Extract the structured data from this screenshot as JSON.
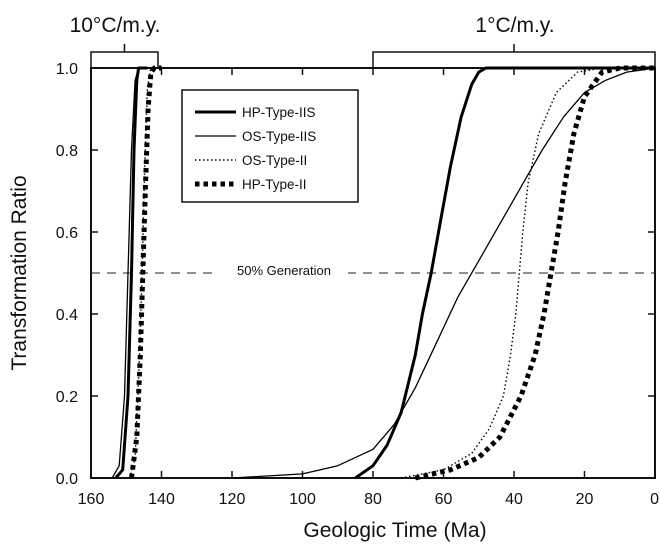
{
  "chart_data": {
    "type": "line",
    "title": "",
    "xlabel": "Geologic Time (Ma)",
    "ylabel": "Transformation Ratio",
    "xlim": [
      160,
      0
    ],
    "ylim": [
      0,
      1.0
    ],
    "x_reversed": true,
    "x_ticks": [
      160,
      140,
      120,
      100,
      80,
      60,
      40,
      20,
      0
    ],
    "x_tick_labels": [
      "160",
      "140",
      "120",
      "100",
      "80",
      "60",
      "40",
      "20",
      "0"
    ],
    "y_ticks": [
      0,
      0.2,
      0.4,
      0.6,
      0.8,
      1.0
    ],
    "y_tick_labels": [
      "0.0",
      "0.2",
      "0.4",
      "0.6",
      "0.8",
      "1.0"
    ],
    "grid": false,
    "legend_position": "top-center",
    "heating_rates": [
      {
        "label": "10°C/m.y.",
        "x_range": [
          160,
          141
        ]
      },
      {
        "label": "1°C/m.y.",
        "x_range": [
          80,
          0
        ]
      }
    ],
    "annotations": [
      {
        "text": "50% Generation",
        "y": 0.5,
        "style": "dashed"
      }
    ],
    "series": [
      {
        "name": "HP-Type-IIS",
        "style": "solid-thick",
        "points_10C": [
          [
            153,
            0.0
          ],
          [
            151,
            0.02
          ],
          [
            149.5,
            0.2
          ],
          [
            148.5,
            0.5
          ],
          [
            147.8,
            0.8
          ],
          [
            147,
            0.97
          ],
          [
            146.5,
            1.0
          ],
          [
            144,
            1.0
          ]
        ],
        "points_1C": [
          [
            85,
            0.0
          ],
          [
            80,
            0.03
          ],
          [
            76,
            0.08
          ],
          [
            72,
            0.16
          ],
          [
            68,
            0.3
          ],
          [
            66,
            0.4
          ],
          [
            63.5,
            0.5
          ],
          [
            61,
            0.62
          ],
          [
            58,
            0.76
          ],
          [
            55,
            0.88
          ],
          [
            52,
            0.96
          ],
          [
            50,
            0.99
          ],
          [
            48,
            1.0
          ],
          [
            0,
            1.0
          ]
        ]
      },
      {
        "name": "OS-Type-IIS",
        "style": "solid-thin",
        "points_10C": [
          [
            154,
            0.0
          ],
          [
            152,
            0.03
          ],
          [
            150.5,
            0.2
          ],
          [
            149.5,
            0.5
          ],
          [
            148.5,
            0.8
          ],
          [
            147.5,
            0.97
          ],
          [
            146.5,
            1.0
          ],
          [
            144,
            1.0
          ]
        ],
        "points_1C": [
          [
            120,
            0.0
          ],
          [
            100,
            0.01
          ],
          [
            90,
            0.03
          ],
          [
            80,
            0.07
          ],
          [
            74,
            0.13
          ],
          [
            68,
            0.22
          ],
          [
            62,
            0.33
          ],
          [
            56,
            0.44
          ],
          [
            50,
            0.53
          ],
          [
            44,
            0.62
          ],
          [
            38,
            0.71
          ],
          [
            32,
            0.8
          ],
          [
            26,
            0.88
          ],
          [
            20,
            0.94
          ],
          [
            14,
            0.97
          ],
          [
            8,
            0.99
          ],
          [
            0,
            1.0
          ]
        ]
      },
      {
        "name": "OS-Type-II",
        "style": "dotted",
        "points_10C": [
          [
            149,
            0.0
          ],
          [
            147.5,
            0.05
          ],
          [
            146.2,
            0.3
          ],
          [
            145.5,
            0.5
          ],
          [
            144.8,
            0.75
          ],
          [
            144,
            0.95
          ],
          [
            143,
            1.0
          ],
          [
            141,
            1.0
          ]
        ],
        "points_1C": [
          [
            72,
            0.0
          ],
          [
            60,
            0.02
          ],
          [
            52,
            0.06
          ],
          [
            47,
            0.12
          ],
          [
            43,
            0.2
          ],
          [
            41,
            0.3
          ],
          [
            39.5,
            0.4
          ],
          [
            38.5,
            0.5
          ],
          [
            37.5,
            0.6
          ],
          [
            36,
            0.72
          ],
          [
            33,
            0.84
          ],
          [
            28,
            0.94
          ],
          [
            22,
            0.99
          ],
          [
            15,
            1.0
          ],
          [
            0,
            1.0
          ]
        ]
      },
      {
        "name": "HP-Type-II",
        "style": "dashed-thick",
        "points_10C": [
          [
            148.5,
            0.0
          ],
          [
            147,
            0.1
          ],
          [
            146,
            0.3
          ],
          [
            145.3,
            0.5
          ],
          [
            144.6,
            0.7
          ],
          [
            143.8,
            0.9
          ],
          [
            143,
            0.99
          ],
          [
            142,
            1.0
          ],
          [
            140,
            1.0
          ]
        ],
        "points_1C": [
          [
            68,
            0.0
          ],
          [
            58,
            0.02
          ],
          [
            50,
            0.05
          ],
          [
            44,
            0.1
          ],
          [
            38,
            0.2
          ],
          [
            34,
            0.3
          ],
          [
            31.5,
            0.4
          ],
          [
            29.5,
            0.5
          ],
          [
            27.5,
            0.6
          ],
          [
            25.5,
            0.72
          ],
          [
            23,
            0.84
          ],
          [
            20,
            0.93
          ],
          [
            15,
            0.99
          ],
          [
            10,
            1.0
          ],
          [
            0,
            1.0
          ]
        ]
      }
    ]
  }
}
